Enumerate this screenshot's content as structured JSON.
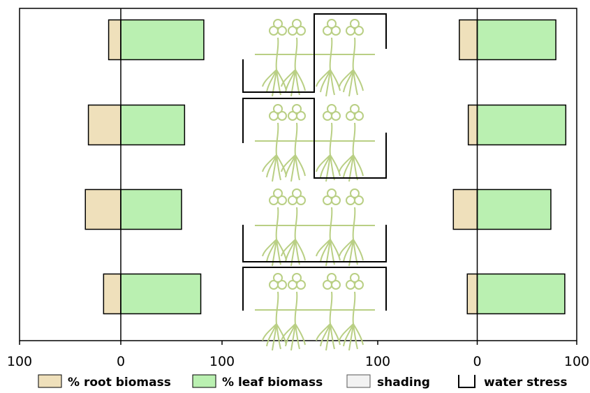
{
  "chart_data": {
    "type": "bar",
    "orientation": "horizontal",
    "xlim": [
      -100,
      100
    ],
    "xticks": [
      {
        "value": -100,
        "label": "100"
      },
      0,
      100
    ],
    "series": [
      {
        "name": "% root biomass",
        "color": "#efe0bb",
        "direction": "left"
      },
      {
        "name": "% leaf biomass",
        "color": "#baf0b1",
        "direction": "right"
      }
    ],
    "panels": [
      {
        "series": [
          {
            "values": [
              12,
              32,
              35,
              17
            ]
          },
          {
            "values": [
              82,
              63,
              60,
              79
            ]
          }
        ]
      },
      {
        "series": [
          {
            "values": [
              18,
              9,
              24,
              10
            ]
          },
          {
            "values": [
              79,
              89,
              74,
              88
            ]
          }
        ]
      }
    ],
    "legend_extra": [
      {
        "name": "shading",
        "color": "#f2f2f2"
      },
      {
        "name": "water stress"
      }
    ]
  }
}
